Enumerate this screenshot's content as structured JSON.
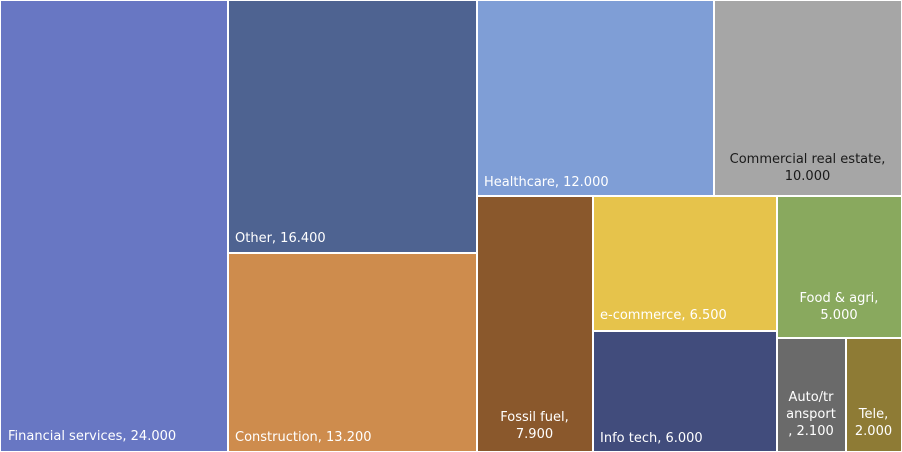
{
  "chart_data": {
    "type": "treemap",
    "title": "",
    "items": [
      {
        "name": "Financial services",
        "value": 24.0,
        "value_label": "24.000",
        "label": "Financial services,  24.000",
        "color": "#6877C3"
      },
      {
        "name": "Other",
        "value": 16.4,
        "value_label": "16.400",
        "label": "Other,  16.400",
        "color": "#4E6391"
      },
      {
        "name": "Construction",
        "value": 13.2,
        "value_label": "13.200",
        "label": "Construction,  13.200",
        "color": "#CE8C4D"
      },
      {
        "name": "Healthcare",
        "value": 12.0,
        "value_label": "12.000",
        "label": "Healthcare,  12.000",
        "color": "#7F9ED6"
      },
      {
        "name": "Commercial real estate",
        "value": 10.0,
        "value_label": "10.000",
        "label": "Commercial real estate,\n10.000",
        "color": "#A6A6A6"
      },
      {
        "name": "Fossil fuel",
        "value": 7.9,
        "value_label": "7.900",
        "label": "Fossil fuel,\n7.900",
        "color": "#8A582C"
      },
      {
        "name": "e-commerce",
        "value": 6.5,
        "value_label": "6.500",
        "label": "e-commerce,  6.500",
        "color": "#E6C34B"
      },
      {
        "name": "Info tech",
        "value": 6.0,
        "value_label": "6.000",
        "label": "Info tech,  6.000",
        "color": "#414C7C"
      },
      {
        "name": "Food & agri",
        "value": 5.0,
        "value_label": "5.000",
        "label": "Food & agri,\n5.000",
        "color": "#89A95E"
      },
      {
        "name": "Auto/transport",
        "value": 2.1,
        "value_label": "2.100",
        "label": "Auto/tr\nansport\n,  2.100",
        "color": "#6A6A6A"
      },
      {
        "name": "Tele",
        "value": 2.0,
        "value_label": "2.000",
        "label": "Tele,\n2.000",
        "color": "#8E7B35"
      }
    ]
  }
}
